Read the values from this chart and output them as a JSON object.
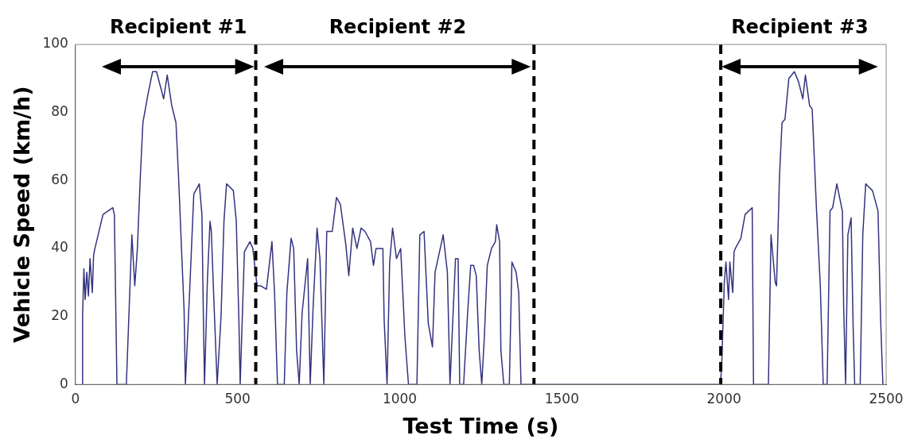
{
  "chart_data": {
    "type": "line",
    "xlabel": "Test Time (s)",
    "ylabel": "Vehicle Speed (km/h)",
    "xlim": [
      0,
      2500
    ],
    "xticks": [
      0,
      500,
      1000,
      1500,
      2000,
      2500
    ],
    "ylim": [
      0,
      100
    ],
    "yticks": [
      0,
      20,
      40,
      60,
      80,
      100
    ],
    "grid": false,
    "legend": false,
    "marker": "none",
    "line_style": "solid",
    "series": [
      {
        "color": "#33337f",
        "x": [
          20,
          22,
          26,
          30,
          35,
          40,
          45,
          52,
          56,
          60,
          85,
          115,
          120,
          128,
          157,
          174,
          183,
          191,
          200,
          208,
          225,
          238,
          250,
          272,
          283,
          297,
          310,
          318,
          327,
          335,
          339,
          352,
          365,
          382,
          390,
          394,
          398,
          407,
          415,
          419,
          428,
          437,
          449,
          458,
          466,
          487,
          496,
          504,
          508,
          521,
          538,
          547,
          560,
          572,
          589,
          606,
          614,
          623,
          644,
          652,
          665,
          673,
          682,
          690,
          699,
          716,
          724,
          733,
          745,
          754,
          766,
          775,
          792,
          805,
          817,
          834,
          843,
          855,
          868,
          881,
          893,
          910,
          919,
          927,
          948,
          952,
          961,
          969,
          978,
          990,
          1003,
          1016,
          1027,
          1053,
          1062,
          1075,
          1088,
          1101,
          1109,
          1134,
          1147,
          1155,
          1172,
          1180,
          1185,
          1197,
          1210,
          1219,
          1228,
          1236,
          1245,
          1253,
          1261,
          1270,
          1283,
          1295,
          1299,
          1308,
          1312,
          1321,
          1338,
          1346,
          1359,
          1367,
          1374,
          1989,
          1993,
          2001,
          2006,
          2014,
          2018,
          2027,
          2031,
          2035,
          2052,
          2065,
          2087,
          2091,
          2137,
          2145,
          2158,
          2162,
          2171,
          2179,
          2188,
          2200,
          2217,
          2230,
          2243,
          2251,
          2264,
          2272,
          2285,
          2297,
          2306,
          2318,
          2327,
          2335,
          2348,
          2365,
          2369,
          2375,
          2382,
          2392,
          2398,
          2403,
          2420,
          2428,
          2437,
          2458,
          2475,
          2483,
          2490
        ],
        "values": [
          0,
          20,
          34,
          25,
          33,
          26,
          37,
          27,
          38,
          40,
          50,
          52,
          50,
          0,
          0,
          44,
          29,
          40,
          61,
          77,
          86,
          92,
          92,
          84,
          91,
          82,
          77,
          61,
          40,
          22,
          0,
          27,
          56,
          59,
          50,
          23,
          0,
          31,
          48,
          45,
          22,
          0,
          20,
          48,
          59,
          57,
          48,
          19,
          0,
          39,
          42,
          40,
          29,
          29,
          28,
          42,
          27,
          0,
          0,
          27,
          43,
          40,
          10,
          0,
          21,
          37,
          0,
          23,
          46,
          37,
          0,
          45,
          45,
          55,
          53,
          41,
          32,
          46,
          40,
          46,
          45,
          42,
          35,
          40,
          40,
          19,
          0,
          36,
          46,
          37,
          40,
          14,
          0,
          0,
          44,
          45,
          18,
          11,
          33,
          44,
          33,
          0,
          37,
          37,
          0,
          0,
          22,
          35,
          35,
          32,
          10,
          0,
          14,
          35,
          40,
          42,
          47,
          42,
          10,
          0,
          0,
          36,
          33,
          27,
          0,
          0,
          6,
          30,
          36,
          25,
          36,
          27,
          39,
          40,
          43,
          50,
          52,
          0,
          0,
          44,
          30,
          29,
          61,
          77,
          78,
          90,
          92,
          89,
          84,
          91,
          82,
          81,
          52,
          29,
          0,
          0,
          51,
          52,
          59,
          51,
          23,
          0,
          44,
          49,
          18,
          0,
          0,
          44,
          59,
          57,
          51,
          19,
          0
        ]
      }
    ],
    "ref_lines": [
      {
        "axis": "x",
        "value": 556,
        "color": "#000000",
        "line_style": "dashed"
      },
      {
        "axis": "x",
        "value": 1414,
        "color": "#000000",
        "line_style": "dashed"
      },
      {
        "axis": "x",
        "value": 1990,
        "color": "#000000",
        "line_style": "dashed"
      }
    ],
    "annotations": [
      "Recipient #1",
      "Recipient #2",
      "Recipient #3"
    ]
  }
}
